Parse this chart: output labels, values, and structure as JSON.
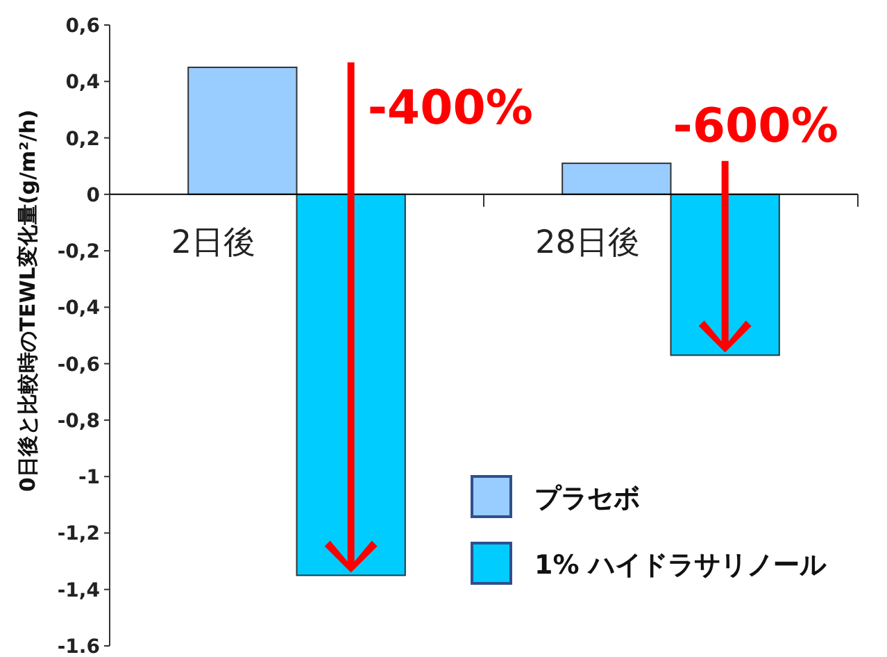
{
  "chart_data": {
    "type": "bar",
    "categories": [
      "2日後",
      "28日後"
    ],
    "ylabel": "0日後と比較時のTEWL変化量(g/m²/h)",
    "series": [
      {
        "name": "プラセボ",
        "color": "#99ccff",
        "values": [
          0.45,
          0.11
        ]
      },
      {
        "name": "1% ハイドラサリノール",
        "color": "#00ccff",
        "values": [
          -1.35,
          -0.57
        ]
      }
    ],
    "ylim": [
      -1.6,
      0.6
    ],
    "yticks": [
      {
        "value": 0.6,
        "label": "0,6"
      },
      {
        "value": 0.4,
        "label": "0,4"
      },
      {
        "value": 0.2,
        "label": "0,2"
      },
      0,
      {
        "value": -0.2,
        "label": "-0,2"
      },
      {
        "value": -0.4,
        "label": "-0,4"
      },
      {
        "value": -0.6,
        "label": "-0,6"
      },
      {
        "value": -0.8,
        "label": "-0,8"
      },
      -1,
      {
        "value": -1.2,
        "label": "-1,2"
      },
      {
        "value": -1.4,
        "label": "-1,4"
      },
      -1.6
    ],
    "annotations": [
      "-400%",
      "-600%"
    ],
    "grid": false,
    "legend": "bottom right"
  }
}
